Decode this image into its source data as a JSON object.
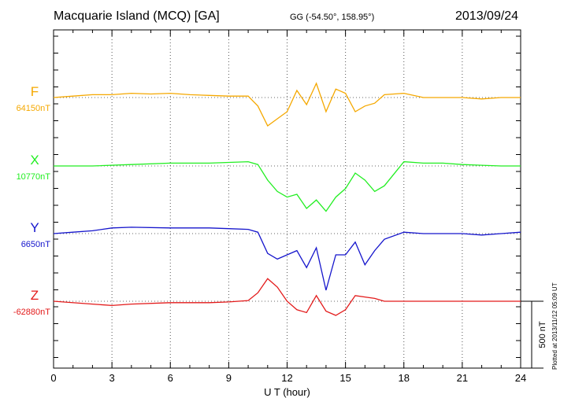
{
  "header": {
    "title": "Macquarie Island (MCQ)  [GA]",
    "coords": "GG (-54.50°, 158.95°)",
    "date": "2013/09/24",
    "plotted": "Plotted at 2013/11/12 05:09 UT"
  },
  "chart_data": {
    "type": "line",
    "xlabel": "U T (hour)",
    "xlim": [
      0,
      24
    ],
    "xticks": [
      0,
      3,
      6,
      9,
      12,
      15,
      18,
      21,
      24
    ],
    "xtick_labels": [
      "0",
      "3",
      "6",
      "9",
      "12",
      "15",
      "18",
      "21",
      "24"
    ],
    "scale_bar": {
      "label": "500 nT",
      "value_nT": 500
    },
    "grid": true,
    "series": [
      {
        "name": "F",
        "baseline_label": "64150nT",
        "color": "#f5a800",
        "x": [
          0,
          1,
          2,
          3,
          4,
          5,
          6,
          7,
          8,
          9,
          10,
          10.5,
          11,
          11.5,
          12,
          12.5,
          13,
          13.5,
          14,
          14.5,
          15,
          15.5,
          16,
          16.5,
          17,
          18,
          19,
          20,
          21,
          22,
          23,
          24
        ],
        "y": [
          0,
          10,
          20,
          20,
          30,
          25,
          30,
          20,
          15,
          10,
          10,
          -60,
          -200,
          -150,
          -100,
          50,
          -50,
          100,
          -100,
          60,
          30,
          -100,
          -60,
          -40,
          20,
          30,
          0,
          0,
          0,
          -10,
          0,
          0
        ]
      },
      {
        "name": "X",
        "baseline_label": "10770nT",
        "color": "#22ee22",
        "x": [
          0,
          2,
          4,
          6,
          8,
          9,
          10,
          10.5,
          11,
          11.5,
          12,
          12.5,
          13,
          13.5,
          14,
          14.5,
          15,
          15.5,
          16,
          16.5,
          17,
          18,
          19,
          20,
          21,
          22,
          23,
          24
        ],
        "y": [
          0,
          0,
          10,
          20,
          20,
          25,
          30,
          10,
          -100,
          -180,
          -220,
          -200,
          -300,
          -240,
          -320,
          -220,
          -160,
          -50,
          -100,
          -180,
          -140,
          30,
          20,
          20,
          10,
          5,
          0,
          0
        ]
      },
      {
        "name": "Y",
        "baseline_label": "6650nT",
        "color": "#1515cc",
        "x": [
          0,
          1,
          2,
          3,
          4,
          6,
          8,
          9,
          10,
          10.5,
          11,
          11.5,
          12,
          12.5,
          13,
          13.5,
          14,
          14.5,
          15,
          15.5,
          16,
          16.5,
          17,
          18,
          19,
          20,
          21,
          22,
          23,
          24
        ],
        "y": [
          0,
          10,
          20,
          40,
          45,
          40,
          40,
          35,
          30,
          10,
          -140,
          -180,
          -150,
          -120,
          -240,
          -100,
          -400,
          -150,
          -150,
          -60,
          -220,
          -120,
          -40,
          10,
          0,
          0,
          0,
          -10,
          0,
          10
        ]
      },
      {
        "name": "Z",
        "baseline_label": "-62880nT",
        "color": "#e31a1a",
        "x": [
          0,
          2,
          3,
          4,
          6,
          8,
          9,
          10,
          10.5,
          11,
          11.5,
          12,
          12.5,
          13,
          13.5,
          14,
          14.5,
          15,
          15.5,
          16,
          16.5,
          17,
          18,
          19,
          20,
          21,
          22,
          23,
          24
        ],
        "y": [
          0,
          -20,
          -30,
          -20,
          -10,
          -10,
          -5,
          5,
          60,
          160,
          100,
          0,
          -60,
          -80,
          40,
          -70,
          -100,
          -60,
          40,
          30,
          20,
          0,
          0,
          0,
          0,
          0,
          0,
          0,
          0
        ]
      }
    ]
  }
}
